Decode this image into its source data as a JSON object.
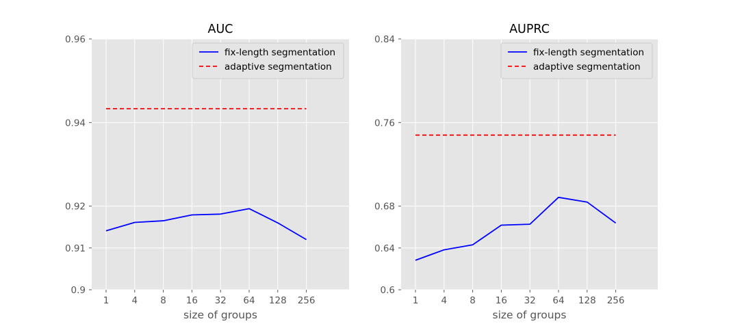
{
  "chart_data": [
    {
      "type": "line",
      "title": "AUC",
      "xlabel": "size of groups",
      "ylabel": "",
      "categories": [
        "1",
        "4",
        "8",
        "16",
        "32",
        "64",
        "128",
        "256"
      ],
      "ylim": [
        0.9,
        0.96
      ],
      "yticks": [
        "0.9",
        "0.91",
        "0.92",
        "0.94",
        "0.96"
      ],
      "grid": true,
      "legend_position": "top-right",
      "series": [
        {
          "name": "fix-length segmentation",
          "style": "solid",
          "color": "#0000ff",
          "values": [
            0.9141,
            0.9161,
            0.9165,
            0.9179,
            0.9181,
            0.9194,
            0.916,
            0.912
          ]
        },
        {
          "name": "adaptive segmentation",
          "style": "dashed",
          "color": "#ff0000",
          "values": [
            0.9433,
            0.9433,
            0.9433,
            0.9433,
            0.9433,
            0.9433,
            0.9433,
            0.9433
          ]
        }
      ]
    },
    {
      "type": "line",
      "title": "AUPRC",
      "xlabel": "size of groups",
      "ylabel": "",
      "categories": [
        "1",
        "4",
        "8",
        "16",
        "32",
        "64",
        "128",
        "256"
      ],
      "ylim": [
        0.6,
        0.84
      ],
      "yticks": [
        "0.6",
        "0.64",
        "0.68",
        "0.76",
        "0.84"
      ],
      "grid": true,
      "legend_position": "top-right",
      "series": [
        {
          "name": "fix-length segmentation",
          "style": "solid",
          "color": "#0000ff",
          "values": [
            0.6282,
            0.6382,
            0.643,
            0.6618,
            0.6627,
            0.6884,
            0.6839,
            0.6638
          ]
        },
        {
          "name": "adaptive segmentation",
          "style": "dashed",
          "color": "#ff0000",
          "values": [
            0.748,
            0.748,
            0.748,
            0.748,
            0.748,
            0.748,
            0.748,
            0.748
          ]
        }
      ]
    }
  ]
}
